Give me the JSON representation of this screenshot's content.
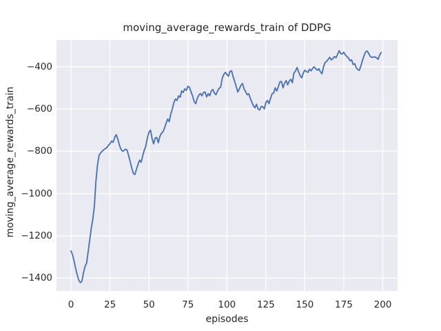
{
  "chart_data": {
    "type": "line",
    "title": "moving_average_rewards_train of DDPG",
    "xlabel": "episodes",
    "ylabel": "moving_average_rewards_train",
    "grid": true,
    "legend": "none",
    "axes_background_color": "#eaeaf2",
    "grid_color": "#ffffff",
    "text_color": "#262626",
    "xlim": [
      -9.3,
      209.5
    ],
    "ylim": [
      -1461,
      -274
    ],
    "xticks": [
      {
        "value": 0,
        "label": "0"
      },
      {
        "value": 25,
        "label": "25"
      },
      {
        "value": 50,
        "label": "50"
      },
      {
        "value": 75,
        "label": "75"
      },
      {
        "value": 100,
        "label": "100"
      },
      {
        "value": 125,
        "label": "125"
      },
      {
        "value": 150,
        "label": "150"
      },
      {
        "value": 175,
        "label": "175"
      },
      {
        "value": 200,
        "label": "200"
      }
    ],
    "yticks": [
      {
        "value": -400,
        "label": "−400"
      },
      {
        "value": -600,
        "label": "−600"
      },
      {
        "value": -800,
        "label": "−800"
      },
      {
        "value": -1000,
        "label": "−1000"
      },
      {
        "value": -1200,
        "label": "−1200"
      },
      {
        "value": -1400,
        "label": "−1400"
      }
    ],
    "series": [
      {
        "name": "moving_average_rewards_train",
        "color": "#4c72b0",
        "line_width": 1.9,
        "x_start": 0,
        "x_step": 1,
        "values": [
          -1272,
          -1290,
          -1320,
          -1355,
          -1385,
          -1410,
          -1421,
          -1415,
          -1375,
          -1345,
          -1330,
          -1275,
          -1220,
          -1165,
          -1120,
          -1060,
          -940,
          -865,
          -820,
          -808,
          -800,
          -793,
          -788,
          -783,
          -772,
          -765,
          -752,
          -758,
          -735,
          -722,
          -742,
          -770,
          -790,
          -800,
          -797,
          -790,
          -795,
          -822,
          -850,
          -880,
          -905,
          -910,
          -885,
          -862,
          -842,
          -852,
          -822,
          -795,
          -775,
          -737,
          -710,
          -700,
          -740,
          -765,
          -738,
          -735,
          -760,
          -730,
          -715,
          -708,
          -690,
          -668,
          -648,
          -660,
          -625,
          -600,
          -570,
          -553,
          -560,
          -538,
          -545,
          -515,
          -522,
          -505,
          -512,
          -493,
          -498,
          -520,
          -538,
          -565,
          -575,
          -550,
          -535,
          -527,
          -538,
          -522,
          -520,
          -543,
          -528,
          -538,
          -515,
          -508,
          -525,
          -533,
          -515,
          -503,
          -497,
          -455,
          -437,
          -427,
          -437,
          -445,
          -422,
          -420,
          -448,
          -470,
          -495,
          -520,
          -505,
          -488,
          -480,
          -505,
          -518,
          -533,
          -528,
          -550,
          -568,
          -585,
          -595,
          -578,
          -600,
          -605,
          -588,
          -590,
          -600,
          -570,
          -560,
          -575,
          -550,
          -528,
          -525,
          -500,
          -515,
          -495,
          -472,
          -470,
          -500,
          -478,
          -466,
          -486,
          -468,
          -460,
          -476,
          -430,
          -421,
          -404,
          -425,
          -443,
          -453,
          -430,
          -417,
          -423,
          -427,
          -412,
          -420,
          -408,
          -401,
          -410,
          -417,
          -410,
          -425,
          -434,
          -400,
          -380,
          -375,
          -365,
          -356,
          -368,
          -362,
          -352,
          -358,
          -342,
          -325,
          -338,
          -340,
          -332,
          -345,
          -352,
          -360,
          -372,
          -368,
          -390,
          -386,
          -405,
          -414,
          -417,
          -395,
          -370,
          -348,
          -330,
          -326,
          -338,
          -352,
          -356,
          -355,
          -354,
          -358,
          -365,
          -345,
          -333
        ]
      }
    ]
  }
}
